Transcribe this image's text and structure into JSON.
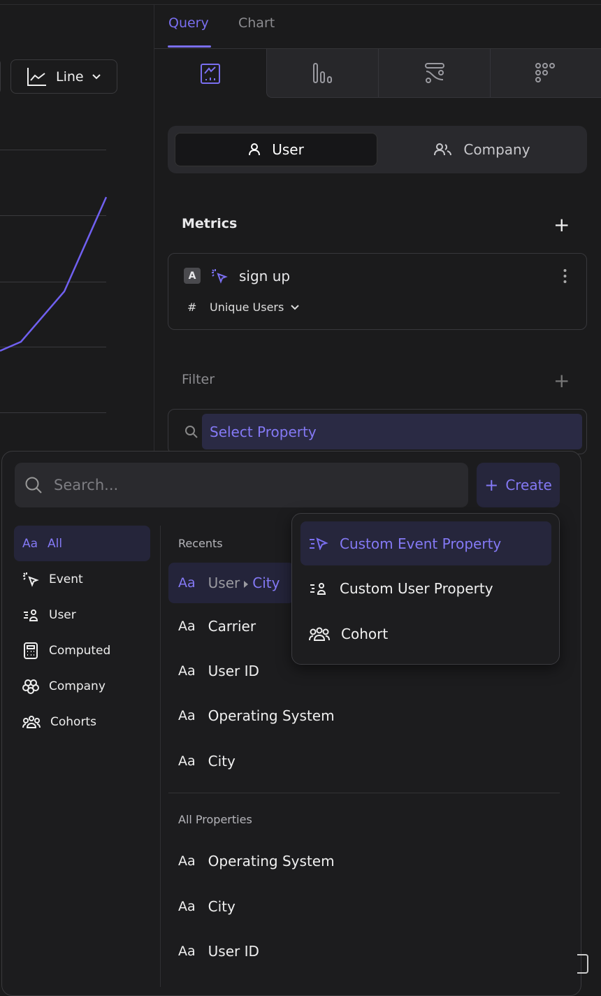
{
  "chart_toolbar": {
    "chart_type_label": "Line"
  },
  "tabs": [
    {
      "label": "Query",
      "active": true
    },
    {
      "label": "Chart",
      "active": false
    }
  ],
  "viz_tabs": [
    {
      "icon": "line-chart-icon",
      "active": true
    },
    {
      "icon": "bar-chart-icon"
    },
    {
      "icon": "flow-icon"
    },
    {
      "icon": "dots-grid-icon"
    }
  ],
  "entity_toggle": {
    "user": "User",
    "company": "Company",
    "selected": "User"
  },
  "metrics": {
    "title": "Metrics",
    "items": [
      {
        "badge": "A",
        "event": "sign up",
        "measure_symbol": "#",
        "measure": "Unique Users"
      }
    ]
  },
  "filter": {
    "title": "Filter",
    "select_label": "Select Property"
  },
  "picker": {
    "search_placeholder": "Search...",
    "create_label": "Create",
    "categories": [
      {
        "icon": "Aa",
        "label": "All",
        "active": true
      },
      {
        "label": "Event"
      },
      {
        "label": "User"
      },
      {
        "label": "Computed"
      },
      {
        "label": "Company"
      },
      {
        "label": "Cohorts"
      }
    ],
    "recents_title": "Recents",
    "recents": [
      {
        "prefix": "User",
        "label": "City"
      },
      {
        "label": "Carrier"
      },
      {
        "label": "User ID"
      },
      {
        "label": "Operating System"
      },
      {
        "label": "City"
      }
    ],
    "all_title": "All Properties",
    "all": [
      {
        "label": "Operating System"
      },
      {
        "label": "City"
      },
      {
        "label": "User ID"
      }
    ],
    "type_glyph": "Aa"
  },
  "create_menu": [
    {
      "label": "Custom Event Property",
      "active": true
    },
    {
      "label": "Custom User Property"
    },
    {
      "label": "Cohort"
    }
  ],
  "colors": {
    "accent": "#7a6ff0",
    "background": "#1b1b1c"
  }
}
